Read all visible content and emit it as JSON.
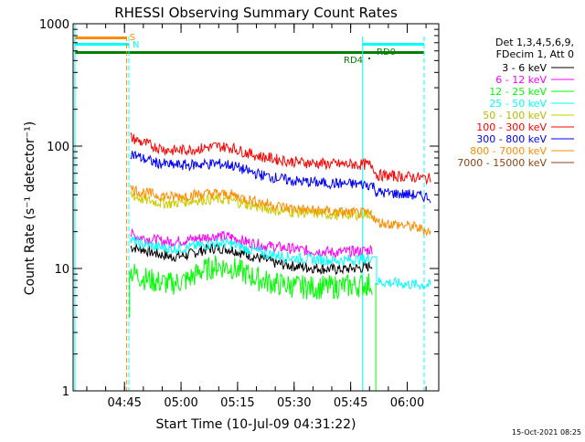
{
  "chart_data": {
    "type": "line",
    "title": "RHESSI Observing Summary Count Rates",
    "xlabel": "Start Time (10-Jul-09 04:31:22)",
    "ylabel": "Count Rate (s⁻¹ detector⁻¹)",
    "ylog": true,
    "ylim": [
      1,
      1000
    ],
    "xlim_minutes_after_start": [
      0,
      97
    ],
    "x_ticks": [
      {
        "label": "04:45",
        "minutes": 13.63
      },
      {
        "label": "05:00",
        "minutes": 28.63
      },
      {
        "label": "05:15",
        "minutes": 43.63
      },
      {
        "label": "05:30",
        "minutes": 58.63
      },
      {
        "label": "05:45",
        "minutes": 73.63
      },
      {
        "label": "06:00",
        "minutes": 88.63
      }
    ],
    "y_ticks": [
      "1",
      "10",
      "100",
      "1000"
    ],
    "legend": {
      "placement": "right",
      "header": [
        "Det 1,3,4,5,6,9,",
        "FDecim 1, Att 0"
      ]
    },
    "series": [
      {
        "name": "3 - 6 keV",
        "color": "#000000",
        "points": [
          [
            15.2,
            15
          ],
          [
            18,
            14.5
          ],
          [
            22,
            13.2
          ],
          [
            26,
            12.5
          ],
          [
            30,
            12.8
          ],
          [
            34,
            14
          ],
          [
            38,
            14.8
          ],
          [
            42,
            14.3
          ],
          [
            46,
            13
          ],
          [
            50,
            12
          ],
          [
            54,
            11
          ],
          [
            58,
            10.5
          ],
          [
            62,
            10.2
          ],
          [
            66,
            10
          ],
          [
            70,
            9.8
          ],
          [
            74,
            10
          ],
          [
            78,
            10.2
          ],
          [
            79.5,
            11
          ]
        ]
      },
      {
        "name": "6 - 12 keV",
        "color": "#ff00ff",
        "points": [
          [
            15.2,
            19
          ],
          [
            18,
            18
          ],
          [
            22,
            17
          ],
          [
            26,
            16.5
          ],
          [
            30,
            17
          ],
          [
            34,
            17.8
          ],
          [
            38,
            18.5
          ],
          [
            42,
            18
          ],
          [
            46,
            16.5
          ],
          [
            50,
            15.5
          ],
          [
            54,
            15
          ],
          [
            58,
            14.5
          ],
          [
            62,
            14
          ],
          [
            66,
            13.8
          ],
          [
            70,
            13.5
          ],
          [
            74,
            13.8
          ],
          [
            78,
            14
          ],
          [
            79.5,
            14.5
          ]
        ]
      },
      {
        "name": "12 - 25 keV",
        "color": "#00ff00",
        "points": [
          [
            15.2,
            9.5
          ],
          [
            18,
            8.5
          ],
          [
            22,
            7.8
          ],
          [
            26,
            7.5
          ],
          [
            30,
            8
          ],
          [
            34,
            9.5
          ],
          [
            38,
            10.5
          ],
          [
            42,
            10.2
          ],
          [
            46,
            9
          ],
          [
            50,
            8
          ],
          [
            54,
            7.5
          ],
          [
            58,
            7.2
          ],
          [
            62,
            7
          ],
          [
            66,
            7
          ],
          [
            70,
            7.1
          ],
          [
            74,
            7.2
          ],
          [
            78,
            7.4
          ],
          [
            79.5,
            7.6
          ]
        ]
      },
      {
        "name": "25 - 50 keV",
        "color": "#00ffff",
        "points": [
          [
            15.2,
            17
          ],
          [
            18,
            16
          ],
          [
            22,
            15
          ],
          [
            26,
            14.5
          ],
          [
            30,
            14.8
          ],
          [
            34,
            15.5
          ],
          [
            38,
            16.2
          ],
          [
            42,
            15.8
          ],
          [
            46,
            14.5
          ],
          [
            50,
            13.5
          ],
          [
            54,
            12.8
          ],
          [
            58,
            12.2
          ],
          [
            62,
            12
          ],
          [
            66,
            11.8
          ],
          [
            70,
            11.6
          ],
          [
            74,
            11.8
          ],
          [
            78,
            12
          ],
          [
            79.5,
            12.5
          ],
          [
            80.5,
            7.8
          ],
          [
            85,
            7.6
          ],
          [
            90,
            7.4
          ],
          [
            95,
            7.3
          ]
        ]
      },
      {
        "name": "50 - 100 keV",
        "color": "#cccc00",
        "points": [
          [
            15.2,
            40
          ],
          [
            18,
            37
          ],
          [
            22,
            35
          ],
          [
            26,
            34
          ],
          [
            30,
            35.5
          ],
          [
            34,
            36.5
          ],
          [
            38,
            37
          ],
          [
            42,
            36
          ],
          [
            46,
            33.5
          ],
          [
            50,
            31.5
          ],
          [
            54,
            30
          ],
          [
            58,
            29
          ],
          [
            62,
            28.5
          ],
          [
            66,
            28
          ],
          [
            70,
            27.5
          ],
          [
            74,
            27.5
          ],
          [
            78,
            28
          ],
          [
            79.5,
            28
          ]
        ]
      },
      {
        "name": "100 - 300 keV",
        "color": "#ff0000",
        "points": [
          [
            15.2,
            118
          ],
          [
            18,
            108
          ],
          [
            22,
            98
          ],
          [
            26,
            92
          ],
          [
            30,
            93
          ],
          [
            34,
            96
          ],
          [
            38,
            100
          ],
          [
            42,
            97
          ],
          [
            46,
            88
          ],
          [
            50,
            82
          ],
          [
            54,
            78
          ],
          [
            58,
            75
          ],
          [
            62,
            73
          ],
          [
            66,
            72
          ],
          [
            70,
            71
          ],
          [
            74,
            71
          ],
          [
            78,
            70.5
          ],
          [
            79.5,
            70
          ],
          [
            80.5,
            58
          ],
          [
            85,
            57
          ],
          [
            90,
            56
          ],
          [
            95,
            54
          ]
        ]
      },
      {
        "name": "300 - 800 keV",
        "color": "#0000ff",
        "points": [
          [
            15.2,
            88
          ],
          [
            18,
            80
          ],
          [
            22,
            73
          ],
          [
            26,
            70
          ],
          [
            30,
            70
          ],
          [
            34,
            71
          ],
          [
            38,
            72
          ],
          [
            42,
            70
          ],
          [
            46,
            63
          ],
          [
            50,
            58
          ],
          [
            54,
            55
          ],
          [
            58,
            52
          ],
          [
            62,
            51
          ],
          [
            66,
            50
          ],
          [
            70,
            49.5
          ],
          [
            74,
            49
          ],
          [
            78,
            48.5
          ],
          [
            79.5,
            48
          ],
          [
            80.5,
            42
          ],
          [
            85,
            41
          ],
          [
            90,
            40
          ],
          [
            95,
            38
          ]
        ]
      },
      {
        "name": "800 - 7000 keV",
        "color": "#ff8c00",
        "points": [
          [
            15.2,
            45
          ],
          [
            18,
            42
          ],
          [
            22,
            40
          ],
          [
            26,
            38.5
          ],
          [
            30,
            39.5
          ],
          [
            34,
            40.5
          ],
          [
            38,
            41
          ],
          [
            42,
            40
          ],
          [
            46,
            37
          ],
          [
            50,
            34.5
          ],
          [
            54,
            32.5
          ],
          [
            58,
            31
          ],
          [
            62,
            30
          ],
          [
            66,
            29.5
          ],
          [
            70,
            29
          ],
          [
            74,
            28.5
          ],
          [
            78,
            28
          ],
          [
            79.5,
            27.5
          ],
          [
            80.5,
            24
          ],
          [
            85,
            23
          ],
          [
            90,
            22
          ],
          [
            95,
            20
          ]
        ]
      },
      {
        "name": "7000 - 15000 keV",
        "color": "#8b4513",
        "points": []
      }
    ],
    "annotations": {
      "flags": [
        {
          "label": "S",
          "color": "#ff8c00"
        },
        {
          "label": "N",
          "color": "#00ffff"
        },
        {
          "label": "RD0",
          "color": "#008000"
        },
        {
          "label": "RD4",
          "color": "#008000"
        }
      ],
      "timestamp": "15-Oct-2021 08:25"
    }
  }
}
